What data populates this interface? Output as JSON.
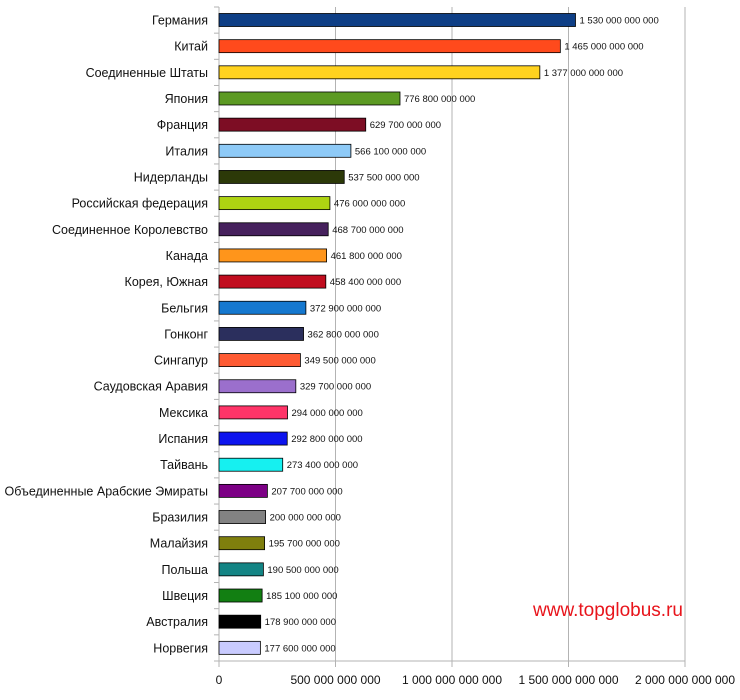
{
  "watermark": "www.topglobus.ru",
  "chart_data": {
    "type": "bar",
    "orientation": "horizontal",
    "categories": [
      "Германия",
      "Китай",
      "Соединенные Штаты",
      "Япония",
      "Франция",
      "Италия",
      "Нидерланды",
      "Российская федерация",
      "Соединенное Королевство",
      "Канада",
      "Корея, Южная",
      "Бельгия",
      "Гонконг",
      "Сингапур",
      "Саудовская Аравия",
      "Мексика",
      "Испания",
      "Тайвань",
      "Объединенные Арабские Эмираты",
      "Бразилия",
      "Малайзия",
      "Польша",
      "Швеция",
      "Австралия",
      "Норвегия"
    ],
    "values": [
      1530000000000,
      1465000000000,
      1377000000000,
      776800000000,
      629700000000,
      566100000000,
      537500000000,
      476000000000,
      468700000000,
      461800000000,
      458400000000,
      372900000000,
      362800000000,
      349500000000,
      329700000000,
      294000000000,
      292800000000,
      273400000000,
      207700000000,
      200000000000,
      195700000000,
      190500000000,
      185100000000,
      178900000000,
      177600000000
    ],
    "value_labels": [
      "1 530 000 000 000",
      "1 465 000 000 000",
      "1 377 000 000 000",
      "776 800 000 000",
      "629 700 000 000",
      "566 100 000 000",
      "537 500 000 000",
      "476 000 000 000",
      "468 700 000 000",
      "461 800 000 000",
      "458 400 000 000",
      "372 900 000 000",
      "362 800 000 000",
      "349 500 000 000",
      "329 700 000 000",
      "294 000 000 000",
      "292 800 000 000",
      "273 400 000 000",
      "207 700 000 000",
      "200 000 000 000",
      "195 700 000 000",
      "190 500 000 000",
      "185 100 000 000",
      "178 900 000 000",
      "177 600 000 000"
    ],
    "colors": [
      "#0e3f86",
      "#ff4a1c",
      "#ffd21f",
      "#5c9a23",
      "#7d0d24",
      "#8ecaf7",
      "#2c3908",
      "#aed312",
      "#46215d",
      "#ff951b",
      "#c10d1f",
      "#1578cf",
      "#2b2f5d",
      "#ff5b33",
      "#9b6fcc",
      "#ff3468",
      "#0d14ee",
      "#16f0f0",
      "#7c0085",
      "#828282",
      "#7f7f0d",
      "#138484",
      "#127f12",
      "#000000",
      "#c9cbff"
    ],
    "xlim": [
      0,
      2000000000000
    ],
    "x_ticks": [
      0,
      500000000000,
      1000000000000,
      1500000000000,
      2000000000000
    ],
    "x_tick_labels": [
      "0",
      "500 000 000 000",
      "1 000 000 000 000",
      "1 500 000 000 000",
      "2 000 000 000 000"
    ],
    "grid": "vertical",
    "legend": "none"
  }
}
